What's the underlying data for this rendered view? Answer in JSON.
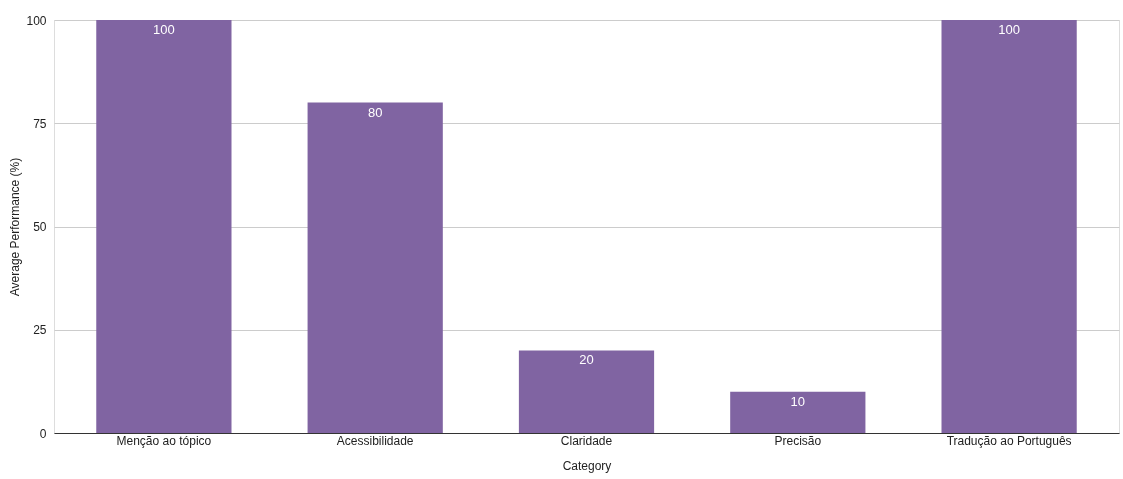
{
  "chart_data": {
    "type": "bar",
    "xlabel": "Category",
    "ylabel": "Average Performance (%)",
    "categories": [
      "Menção ao tópico",
      "Acessibilidade",
      "Claridade",
      "Precisão",
      "Tradução ao Português"
    ],
    "values": [
      100,
      80,
      20,
      10,
      100
    ],
    "color": "#8064a2",
    "ylim": [
      0,
      100
    ],
    "yticks": [
      0,
      25,
      50,
      75,
      100
    ],
    "grid": "y",
    "data_labels": true
  }
}
